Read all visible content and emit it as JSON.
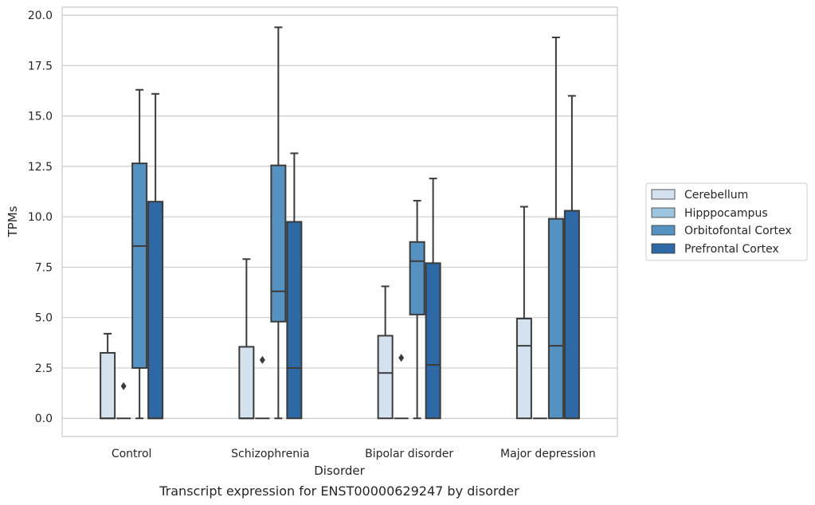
{
  "chart_data": {
    "type": "box",
    "title": "Transcript expression for ENST00000629247 by disorder",
    "xlabel": "Disorder",
    "ylabel": "TPMs",
    "ylim": [
      -0.9,
      20.4
    ],
    "yticks": [
      "0.0",
      "2.5",
      "5.0",
      "7.5",
      "10.0",
      "12.5",
      "15.0",
      "17.5",
      "20.0"
    ],
    "categories": [
      "Control",
      "Schizophrenia",
      "Bipolar disorder",
      "Major depression"
    ],
    "grid": "horizontal",
    "legend_position": "right",
    "series": [
      {
        "name": "Cerebellum",
        "color": "#d4e2f0",
        "boxes": [
          {
            "whislo": 0.0,
            "q1": 0.0,
            "med": 0.0,
            "q3": 3.25,
            "whishi": 4.2,
            "fliers": []
          },
          {
            "whislo": 0.0,
            "q1": 0.0,
            "med": 0.0,
            "q3": 3.55,
            "whishi": 7.9,
            "fliers": []
          },
          {
            "whislo": 0.0,
            "q1": 0.0,
            "med": 2.25,
            "q3": 4.1,
            "whishi": 6.55,
            "fliers": []
          },
          {
            "whislo": 0.0,
            "q1": 0.0,
            "med": 3.6,
            "q3": 4.95,
            "whishi": 10.5,
            "fliers": []
          }
        ]
      },
      {
        "name": "Hipppocampus",
        "color": "#9dc5df",
        "boxes": [
          {
            "whislo": 0.0,
            "q1": 0.0,
            "med": 0.0,
            "q3": 0.0,
            "whishi": 0.0,
            "fliers": [
              1.6
            ]
          },
          {
            "whislo": 0.0,
            "q1": 0.0,
            "med": 0.0,
            "q3": 0.0,
            "whishi": 0.0,
            "fliers": [
              2.9
            ]
          },
          {
            "whislo": 0.0,
            "q1": 0.0,
            "med": 0.0,
            "q3": 0.0,
            "whishi": 0.0,
            "fliers": [
              3.0
            ]
          },
          {
            "whislo": 0.0,
            "q1": 0.0,
            "med": 0.0,
            "q3": 0.0,
            "whishi": 0.0,
            "fliers": []
          }
        ]
      },
      {
        "name": "Orbitofontal Cortex",
        "color": "#5592c1",
        "boxes": [
          {
            "whislo": 0.0,
            "q1": 2.5,
            "med": 8.55,
            "q3": 12.65,
            "whishi": 16.3,
            "fliers": []
          },
          {
            "whislo": 0.0,
            "q1": 4.8,
            "med": 6.3,
            "q3": 12.55,
            "whishi": 19.4,
            "fliers": []
          },
          {
            "whislo": 0.0,
            "q1": 5.15,
            "med": 7.8,
            "q3": 8.75,
            "whishi": 10.8,
            "fliers": []
          },
          {
            "whislo": 0.0,
            "q1": 0.0,
            "med": 3.6,
            "q3": 9.9,
            "whishi": 18.9,
            "fliers": []
          }
        ]
      },
      {
        "name": "Prefrontal Cortex",
        "color": "#2e69a6",
        "boxes": [
          {
            "whislo": 0.0,
            "q1": 0.0,
            "med": 0.0,
            "q3": 10.75,
            "whishi": 16.1,
            "fliers": []
          },
          {
            "whislo": 0.0,
            "q1": 0.0,
            "med": 2.5,
            "q3": 9.75,
            "whishi": 13.15,
            "fliers": []
          },
          {
            "whislo": 0.0,
            "q1": 0.0,
            "med": 2.65,
            "q3": 7.7,
            "whishi": 11.9,
            "fliers": []
          },
          {
            "whislo": 0.0,
            "q1": 0.0,
            "med": 0.0,
            "q3": 10.3,
            "whishi": 16.0,
            "fliers": []
          }
        ]
      }
    ]
  }
}
